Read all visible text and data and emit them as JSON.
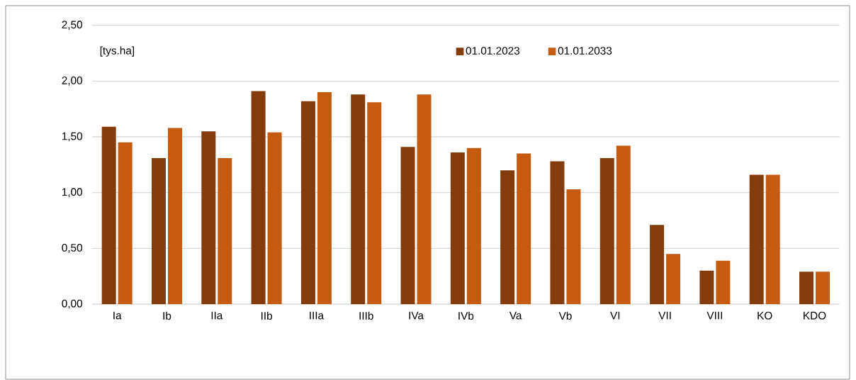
{
  "chart_data": {
    "type": "bar",
    "ylabel": "[tys.ha]",
    "categories": [
      "Ia",
      "Ib",
      "IIa",
      "IIb",
      "IIIa",
      "IIIb",
      "IVa",
      "IVb",
      "Va",
      "Vb",
      "VI",
      "VII",
      "VIII",
      "KO",
      "KDO"
    ],
    "series": [
      {
        "name": "01.01.2023",
        "color": "#843c0c",
        "values": [
          1.59,
          1.31,
          1.55,
          1.91,
          1.82,
          1.88,
          1.41,
          1.36,
          1.2,
          1.28,
          1.31,
          0.71,
          0.3,
          1.16,
          0.29
        ]
      },
      {
        "name": "01.01.2033",
        "color": "#c55a11",
        "values": [
          1.45,
          1.58,
          1.31,
          1.54,
          1.9,
          1.81,
          1.88,
          1.4,
          1.35,
          1.03,
          1.42,
          0.45,
          0.39,
          1.16,
          0.29
        ]
      }
    ],
    "ylim": [
      0,
      2.5
    ],
    "yticks": [
      {
        "value": 0,
        "label": "0,00"
      },
      {
        "value": 0.5,
        "label": "0,50"
      },
      {
        "value": 1,
        "label": "1,00"
      },
      {
        "value": 1.5,
        "label": "1,50"
      },
      {
        "value": 2,
        "label": "2,00"
      },
      {
        "value": 2.5,
        "label": "2,50"
      }
    ],
    "grid": "y",
    "legend": "top"
  }
}
